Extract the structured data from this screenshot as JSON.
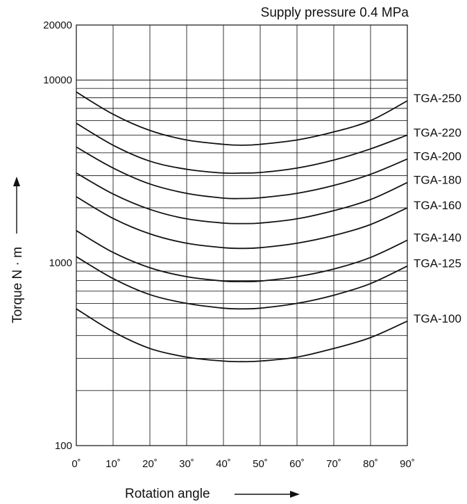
{
  "chart_data": {
    "type": "line",
    "title": "Supply pressure 0.4 MPa",
    "xlabel": "Rotation angle",
    "ylabel": "Torque N · m",
    "x_scale": "linear",
    "y_scale": "log",
    "xlim": [
      0,
      90
    ],
    "ylim": [
      100,
      20000
    ],
    "grid": true,
    "x_ticks": [
      "0˚",
      "10˚",
      "20˚",
      "30˚",
      "40˚",
      "50˚",
      "60˚",
      "70˚",
      "80˚",
      "90˚"
    ],
    "y_ticks": [
      "100",
      "1000",
      "10000",
      "20000"
    ],
    "x": [
      0,
      10,
      20,
      30,
      40,
      45,
      50,
      60,
      70,
      80,
      90
    ],
    "series": [
      {
        "name": "TGA-250",
        "values": [
          8600,
          6500,
          5300,
          4700,
          4450,
          4400,
          4450,
          4700,
          5200,
          6000,
          7700
        ]
      },
      {
        "name": "TGA-220",
        "values": [
          5800,
          4400,
          3600,
          3250,
          3100,
          3100,
          3120,
          3300,
          3650,
          4200,
          5000
        ]
      },
      {
        "name": "TGA-200",
        "values": [
          4300,
          3300,
          2700,
          2400,
          2260,
          2250,
          2270,
          2400,
          2650,
          3050,
          3700
        ]
      },
      {
        "name": "TGA-180",
        "values": [
          3100,
          2380,
          1960,
          1740,
          1650,
          1640,
          1650,
          1740,
          1930,
          2220,
          2750
        ]
      },
      {
        "name": "TGA-160",
        "values": [
          2300,
          1750,
          1440,
          1280,
          1210,
          1200,
          1210,
          1280,
          1410,
          1620,
          2000
        ]
      },
      {
        "name": "TGA-140",
        "values": [
          1500,
          1140,
          940,
          840,
          795,
          790,
          795,
          840,
          925,
          1070,
          1330
        ]
      },
      {
        "name": "TGA-125",
        "values": [
          1080,
          820,
          670,
          600,
          565,
          560,
          565,
          600,
          665,
          770,
          960
        ]
      },
      {
        "name": "TGA-100",
        "values": [
          560,
          420,
          340,
          305,
          290,
          288,
          290,
          305,
          340,
          390,
          480
        ]
      }
    ]
  }
}
